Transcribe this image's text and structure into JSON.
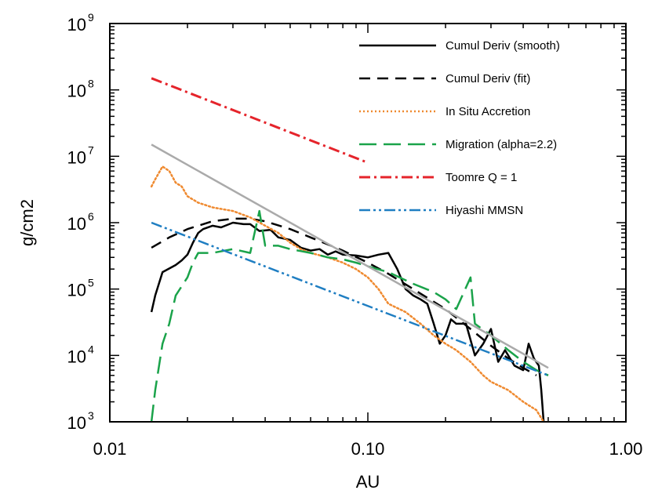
{
  "chart_data": {
    "type": "line",
    "xlabel": "AU",
    "ylabel": "g/cm2",
    "x_scale": "log",
    "y_scale": "log",
    "xlim": [
      0.01,
      1.0
    ],
    "ylim": [
      1000,
      1000000000
    ],
    "x_ticks": [
      {
        "value": 0.01,
        "label": "0.01"
      },
      {
        "value": 0.1,
        "label": "0.10"
      },
      {
        "value": 1.0,
        "label": "1.00"
      }
    ],
    "y_ticks": [
      {
        "value": 1000,
        "base": "10",
        "exp": "3"
      },
      {
        "value": 10000,
        "base": "10",
        "exp": "4"
      },
      {
        "value": 100000,
        "base": "10",
        "exp": "5"
      },
      {
        "value": 1000000,
        "base": "10",
        "exp": "6"
      },
      {
        "value": 10000000,
        "base": "10",
        "exp": "7"
      },
      {
        "value": 100000000,
        "base": "10",
        "exp": "8"
      },
      {
        "value": 1000000000,
        "base": "10",
        "exp": "9"
      }
    ],
    "grid": false,
    "legend_position": "top-right",
    "series": [
      {
        "name": "Cumul Deriv (smooth)",
        "color": "#000000",
        "style": "solid",
        "points": [
          [
            0.0145,
            45000
          ],
          [
            0.015,
            80000
          ],
          [
            0.016,
            180000
          ],
          [
            0.018,
            230000
          ],
          [
            0.019,
            270000
          ],
          [
            0.02,
            330000
          ],
          [
            0.021,
            500000
          ],
          [
            0.022,
            700000
          ],
          [
            0.023,
            800000
          ],
          [
            0.025,
            900000
          ],
          [
            0.027,
            850000
          ],
          [
            0.03,
            1000000
          ],
          [
            0.033,
            950000
          ],
          [
            0.035,
            950000
          ],
          [
            0.038,
            750000
          ],
          [
            0.042,
            780000
          ],
          [
            0.045,
            600000
          ],
          [
            0.05,
            550000
          ],
          [
            0.055,
            420000
          ],
          [
            0.06,
            380000
          ],
          [
            0.065,
            400000
          ],
          [
            0.07,
            330000
          ],
          [
            0.075,
            370000
          ],
          [
            0.08,
            330000
          ],
          [
            0.09,
            320000
          ],
          [
            0.1,
            300000
          ],
          [
            0.11,
            330000
          ],
          [
            0.12,
            350000
          ],
          [
            0.13,
            200000
          ],
          [
            0.14,
            100000
          ],
          [
            0.15,
            80000
          ],
          [
            0.16,
            70000
          ],
          [
            0.17,
            60000
          ],
          [
            0.18,
            30000
          ],
          [
            0.19,
            15000
          ],
          [
            0.2,
            20000
          ],
          [
            0.21,
            35000
          ],
          [
            0.22,
            30000
          ],
          [
            0.24,
            30000
          ],
          [
            0.26,
            10000
          ],
          [
            0.28,
            15000
          ],
          [
            0.3,
            25000
          ],
          [
            0.32,
            8000
          ],
          [
            0.34,
            12000
          ],
          [
            0.37,
            7000
          ],
          [
            0.4,
            6000
          ],
          [
            0.42,
            15000
          ],
          [
            0.44,
            9000
          ],
          [
            0.46,
            7000
          ],
          [
            0.47,
            3000
          ],
          [
            0.48,
            1000
          ]
        ]
      },
      {
        "name": "Cumul Deriv (fit)",
        "color": "#000000",
        "style": "dashed",
        "points": [
          [
            0.0145,
            420000
          ],
          [
            0.017,
            600000
          ],
          [
            0.02,
            800000
          ],
          [
            0.025,
            1050000
          ],
          [
            0.03,
            1150000
          ],
          [
            0.035,
            1150000
          ],
          [
            0.04,
            1050000
          ],
          [
            0.05,
            800000
          ],
          [
            0.06,
            600000
          ],
          [
            0.08,
            380000
          ],
          [
            0.1,
            250000
          ],
          [
            0.12,
            170000
          ],
          [
            0.15,
            100000
          ],
          [
            0.2,
            50000
          ],
          [
            0.25,
            25000
          ],
          [
            0.3,
            14000
          ],
          [
            0.35,
            9000
          ],
          [
            0.4,
            6500
          ],
          [
            0.45,
            5000
          ]
        ]
      },
      {
        "name": "In Situ Accretion",
        "color": "#ef8a30",
        "style": "dotted",
        "points": [
          [
            0.0145,
            3500000
          ],
          [
            0.015,
            4500000
          ],
          [
            0.016,
            7000000
          ],
          [
            0.017,
            6000000
          ],
          [
            0.018,
            4000000
          ],
          [
            0.019,
            3500000
          ],
          [
            0.02,
            2500000
          ],
          [
            0.022,
            2000000
          ],
          [
            0.025,
            1700000
          ],
          [
            0.03,
            1500000
          ],
          [
            0.035,
            1200000
          ],
          [
            0.04,
            900000
          ],
          [
            0.045,
            700000
          ],
          [
            0.05,
            500000
          ],
          [
            0.055,
            400000
          ],
          [
            0.06,
            350000
          ],
          [
            0.07,
            300000
          ],
          [
            0.08,
            250000
          ],
          [
            0.09,
            200000
          ],
          [
            0.1,
            150000
          ],
          [
            0.11,
            100000
          ],
          [
            0.12,
            60000
          ],
          [
            0.14,
            45000
          ],
          [
            0.16,
            30000
          ],
          [
            0.18,
            20000
          ],
          [
            0.2,
            15000
          ],
          [
            0.22,
            12000
          ],
          [
            0.25,
            8000
          ],
          [
            0.28,
            5000
          ],
          [
            0.3,
            4000
          ],
          [
            0.35,
            3000
          ],
          [
            0.4,
            2000
          ],
          [
            0.45,
            1500
          ],
          [
            0.48,
            1000
          ]
        ]
      },
      {
        "name": "Migration (alpha=2.2)",
        "color": "#1aa34a",
        "style": "longdash",
        "points": [
          [
            0.0145,
            1000
          ],
          [
            0.015,
            3000
          ],
          [
            0.016,
            15000
          ],
          [
            0.017,
            30000
          ],
          [
            0.018,
            80000
          ],
          [
            0.02,
            150000
          ],
          [
            0.021,
            250000
          ],
          [
            0.022,
            350000
          ],
          [
            0.025,
            350000
          ],
          [
            0.03,
            400000
          ],
          [
            0.035,
            350000
          ],
          [
            0.038,
            1500000
          ],
          [
            0.04,
            450000
          ],
          [
            0.045,
            450000
          ],
          [
            0.05,
            400000
          ],
          [
            0.06,
            350000
          ],
          [
            0.07,
            300000
          ],
          [
            0.08,
            280000
          ],
          [
            0.09,
            250000
          ],
          [
            0.1,
            220000
          ],
          [
            0.12,
            180000
          ],
          [
            0.15,
            120000
          ],
          [
            0.18,
            90000
          ],
          [
            0.2,
            70000
          ],
          [
            0.22,
            50000
          ],
          [
            0.25,
            150000
          ],
          [
            0.26,
            30000
          ],
          [
            0.3,
            20000
          ],
          [
            0.35,
            12000
          ],
          [
            0.4,
            8000
          ],
          [
            0.45,
            6000
          ],
          [
            0.5,
            5000
          ]
        ]
      },
      {
        "name": "Toomre Q = 1",
        "color": "#e5242b",
        "style": "dashdot",
        "points": [
          [
            0.0145,
            150000000
          ],
          [
            0.1,
            8000000
          ]
        ]
      },
      {
        "name": "Hiyashi MMSN",
        "color": "#1f7ec2",
        "style": "dashdotdot",
        "points": [
          [
            0.0145,
            1000000
          ],
          [
            0.5,
            5000
          ]
        ]
      },
      {
        "color": "#aaaaaa",
        "style": "solid",
        "points": [
          [
            0.0145,
            15000000
          ],
          [
            0.5,
            6500
          ]
        ]
      }
    ]
  }
}
